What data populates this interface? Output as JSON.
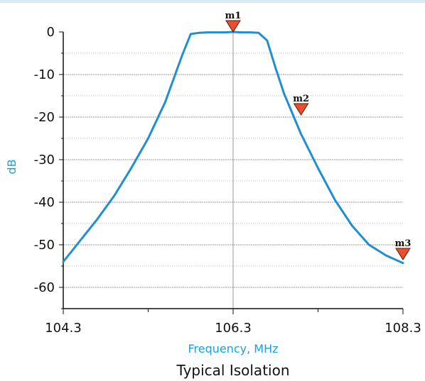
{
  "chart_data": {
    "type": "line",
    "title": "",
    "caption": "Typical Isolation",
    "xlabel": "Frequency, MHz",
    "ylabel": "dB",
    "xlim": [
      104.3,
      108.3
    ],
    "ylim": [
      -65,
      0
    ],
    "x_ticks": [
      104.3,
      106.3,
      108.3
    ],
    "x_tick_labels": [
      "104.3",
      "106.3",
      "108.3"
    ],
    "x_minor_ticks": [
      105.3,
      107.3
    ],
    "y_ticks": [
      0,
      -10,
      -20,
      -30,
      -40,
      -50,
      -60
    ],
    "y_tick_labels": [
      "0",
      "-10",
      "-20",
      "-30",
      "-40",
      "-50",
      "-60"
    ],
    "grid": true,
    "series": [
      {
        "color": "#1f8fd0",
        "x": [
          104.3,
          104.5,
          104.7,
          104.9,
          105.1,
          105.3,
          105.5,
          105.7,
          105.8,
          105.9,
          106.0,
          106.1,
          106.2,
          106.3,
          106.4,
          106.5,
          106.6,
          106.7,
          106.8,
          106.9,
          107.1,
          107.3,
          107.5,
          107.7,
          107.9,
          108.1,
          108.3
        ],
        "y": [
          -54.0,
          -49.0,
          -44.0,
          -38.5,
          -32.0,
          -25.0,
          -16.5,
          -5.5,
          -0.5,
          -0.2,
          -0.1,
          -0.1,
          -0.1,
          0.0,
          -0.1,
          -0.1,
          -0.2,
          -2.0,
          -8.5,
          -14.5,
          -24.0,
          -32.0,
          -39.5,
          -45.5,
          -50.0,
          -52.5,
          -54.3
        ]
      }
    ],
    "markers": [
      {
        "label": "m1",
        "x": 106.3,
        "y": 0.0,
        "color": "#e8502d"
      },
      {
        "label": "m2",
        "x": 107.1,
        "y": -19.5,
        "color": "#e8502d"
      },
      {
        "label": "m3",
        "x": 108.3,
        "y": -53.5,
        "color": "#e8502d"
      }
    ]
  }
}
